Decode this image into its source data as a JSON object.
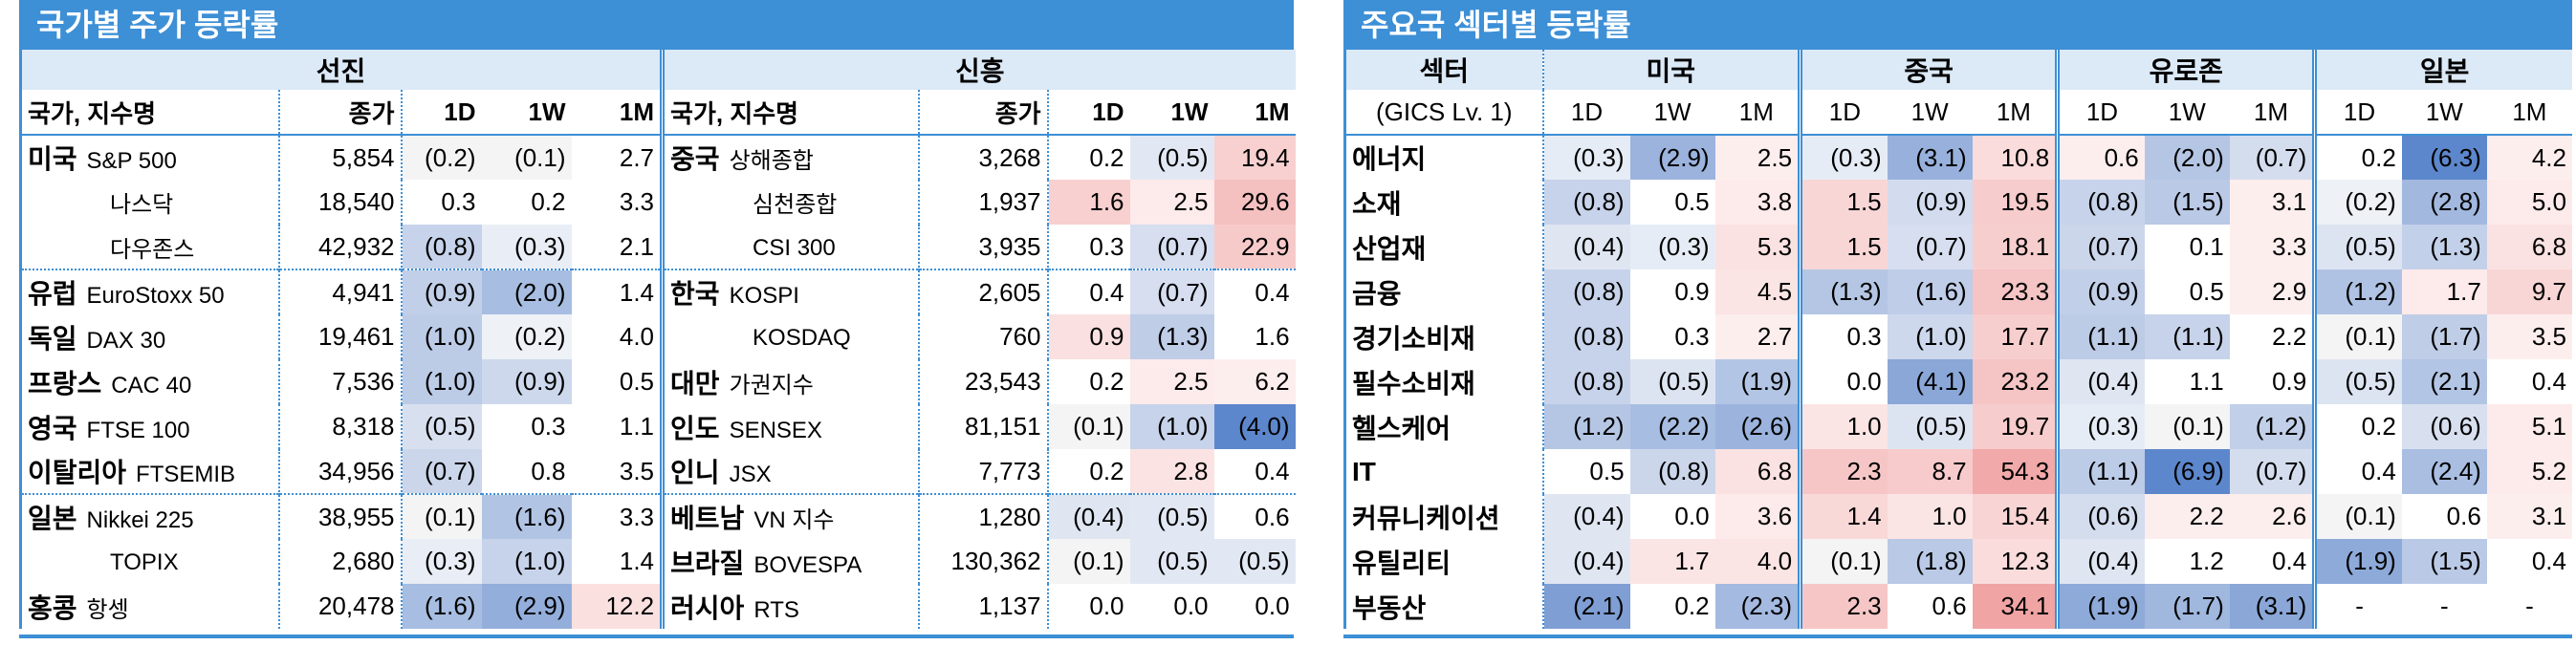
{
  "country_panel": {
    "title": "국가별 주가 등락률",
    "groups": [
      "선진",
      "신흥"
    ],
    "headers": [
      "국가, 지수명",
      "종가",
      "1D",
      "1W",
      "1M"
    ],
    "developed": [
      {
        "country": "미국",
        "index": "S&P 500",
        "close": "5,854",
        "d1": "(0.2)",
        "w1": "(0.1)",
        "m1": "2.7",
        "c1": "#f4f4f4",
        "c2": "#f4f4f4",
        "c3": "#ffffff"
      },
      {
        "country": "",
        "index": "나스닥",
        "close": "18,540",
        "d1": "0.3",
        "w1": "0.2",
        "m1": "3.3",
        "c1": "#ffffff",
        "c2": "#ffffff",
        "c3": "#ffffff"
      },
      {
        "country": "",
        "index": "다우존스",
        "close": "42,932",
        "d1": "(0.8)",
        "w1": "(0.3)",
        "m1": "2.1",
        "c1": "#c6d3ea",
        "c2": "#e9edf5",
        "c3": "#ffffff"
      },
      {
        "country": "유럽",
        "index": "EuroStoxx 50",
        "close": "4,941",
        "d1": "(0.9)",
        "w1": "(2.0)",
        "m1": "1.4",
        "c1": "#c1cfe8",
        "c2": "#a7bde1",
        "c3": "#ffffff"
      },
      {
        "country": "독일",
        "index": "DAX 30",
        "close": "19,461",
        "d1": "(1.0)",
        "w1": "(0.2)",
        "m1": "4.0",
        "c1": "#bccbe6",
        "c2": "#eef1f6",
        "c3": "#ffffff"
      },
      {
        "country": "프랑스",
        "index": "CAC 40",
        "close": "7,536",
        "d1": "(1.0)",
        "w1": "(0.9)",
        "m1": "0.5",
        "c1": "#bccbe6",
        "c2": "#cdd8ec",
        "c3": "#ffffff"
      },
      {
        "country": "영국",
        "index": "FTSE 100",
        "close": "8,318",
        "d1": "(0.5)",
        "w1": "0.3",
        "m1": "1.1",
        "c1": "#d8e0ef",
        "c2": "#ffffff",
        "c3": "#ffffff"
      },
      {
        "country": "이탈리아",
        "index": "FTSEMIB",
        "close": "34,956",
        "d1": "(0.7)",
        "w1": "0.8",
        "m1": "3.5",
        "c1": "#cbd6eb",
        "c2": "#ffffff",
        "c3": "#ffffff"
      },
      {
        "country": "일본",
        "index": "Nikkei 225",
        "close": "38,955",
        "d1": "(0.1)",
        "w1": "(1.6)",
        "m1": "3.3",
        "c1": "#f4f4f4",
        "c2": "#b1c4e4",
        "c3": "#ffffff"
      },
      {
        "country": "",
        "index": "TOPIX",
        "close": "2,680",
        "d1": "(0.3)",
        "w1": "(1.0)",
        "m1": "1.4",
        "c1": "#e9edf5",
        "c2": "#c7d3ea",
        "c3": "#ffffff"
      },
      {
        "country": "홍콩",
        "index": "항셍",
        "close": "20,478",
        "d1": "(1.6)",
        "w1": "(2.9)",
        "m1": "12.2",
        "c1": "#a7bde1",
        "c2": "#93aedb",
        "c3": "#fbe0e0"
      }
    ],
    "emerging": [
      {
        "country": "중국",
        "index": "상해종합",
        "close": "3,268",
        "d1": "0.2",
        "w1": "(0.5)",
        "m1": "19.4",
        "c1": "#ffffff",
        "c2": "#e2e8f3",
        "c3": "#f8d0d0"
      },
      {
        "country": "",
        "index": "심천종합",
        "close": "1,937",
        "d1": "1.6",
        "w1": "2.5",
        "m1": "29.6",
        "c1": "#f8d0d0",
        "c2": "#fdeaea",
        "c3": "#f5c0c0"
      },
      {
        "country": "",
        "index": "CSI 300",
        "close": "3,935",
        "d1": "0.3",
        "w1": "(0.7)",
        "m1": "22.9",
        "c1": "#ffffff",
        "c2": "#d6def0",
        "c3": "#f7caca"
      },
      {
        "country": "한국",
        "index": "KOSPI",
        "close": "2,605",
        "d1": "0.4",
        "w1": "(0.7)",
        "m1": "0.4",
        "c1": "#ffffff",
        "c2": "#d6def0",
        "c3": "#ffffff"
      },
      {
        "country": "",
        "index": "KOSDAQ",
        "close": "760",
        "d1": "0.9",
        "w1": "(1.3)",
        "m1": "1.6",
        "c1": "#fae0e0",
        "c2": "#bfcde7",
        "c3": "#ffffff"
      },
      {
        "country": "대만",
        "index": "가권지수",
        "close": "23,543",
        "d1": "0.2",
        "w1": "2.5",
        "m1": "6.2",
        "c1": "#ffffff",
        "c2": "#fdeaea",
        "c3": "#fdeeee"
      },
      {
        "country": "인도",
        "index": "SENSEX",
        "close": "81,151",
        "d1": "(0.1)",
        "w1": "(1.0)",
        "m1": "(4.0)",
        "c1": "#f4f4f4",
        "c2": "#c7d3ea",
        "c3": "#5d87cc"
      },
      {
        "country": "인니",
        "index": "JSX",
        "close": "7,773",
        "d1": "0.2",
        "w1": "2.8",
        "m1": "0.4",
        "c1": "#ffffff",
        "c2": "#fbe3e3",
        "c3": "#ffffff"
      },
      {
        "country": "베트남",
        "index": "VN 지수",
        "close": "1,280",
        "d1": "(0.4)",
        "w1": "(0.5)",
        "m1": "0.6",
        "c1": "#dfe6f2",
        "c2": "#e2e8f3",
        "c3": "#ffffff"
      },
      {
        "country": "브라질",
        "index": "BOVESPA",
        "close": "130,362",
        "d1": "(0.1)",
        "w1": "(0.5)",
        "m1": "(0.5)",
        "c1": "#f4f4f4",
        "c2": "#e2e8f3",
        "c3": "#e2e8f3"
      },
      {
        "country": "러시아",
        "index": "RTS",
        "close": "1,137",
        "d1": "0.0",
        "w1": "0.0",
        "m1": "0.0",
        "c1": "#ffffff",
        "c2": "#ffffff",
        "c3": "#ffffff"
      }
    ]
  },
  "sector_panel": {
    "title": "주요국 섹터별 등락률",
    "sector_header": "섹터",
    "sector_sub": "(GICS Lv. 1)",
    "regions": [
      "미국",
      "중국",
      "유로존",
      "일본"
    ],
    "periods": [
      "1D",
      "1W",
      "1M"
    ],
    "rows": [
      {
        "sector": "에너지",
        "v": [
          "(0.3)",
          "(2.9)",
          "2.5",
          "(0.3)",
          "(3.1)",
          "10.8",
          "0.6",
          "(2.0)",
          "(0.7)",
          "0.2",
          "(6.3)",
          "4.2"
        ],
        "c": [
          "#e6ecf5",
          "#9bb3dd",
          "#fdeeee",
          "#e6ecf5",
          "#98b1dc",
          "#fbdcdc",
          "#fdeeee",
          "#b5c6e4",
          "#d4ddee",
          "#ffffff",
          "#5d87cc",
          "#fdeeee"
        ]
      },
      {
        "sector": "소재",
        "v": [
          "(0.8)",
          "0.5",
          "3.8",
          "1.5",
          "(0.9)",
          "19.5",
          "(0.8)",
          "(1.5)",
          "3.1",
          "(0.2)",
          "(2.8)",
          "5.0"
        ],
        "c": [
          "#c7d3ea",
          "#ffffff",
          "#fdeaea",
          "#f8d6d6",
          "#d2dcee",
          "#f7cccc",
          "#c7d3ea",
          "#b9c9e6",
          "#fdeeee",
          "#eef1f6",
          "#a2b8df",
          "#fdeaea"
        ]
      },
      {
        "sector": "산업재",
        "v": [
          "(0.4)",
          "(0.3)",
          "5.3",
          "1.5",
          "(0.7)",
          "18.1",
          "(0.7)",
          "0.1",
          "3.3",
          "(0.5)",
          "(1.3)",
          "6.8"
        ],
        "c": [
          "#dfe6f2",
          "#e6ecf5",
          "#fbe2e2",
          "#f8d6d6",
          "#d6def0",
          "#f7cece",
          "#ccd6eb",
          "#ffffff",
          "#fdeeee",
          "#dde4f1",
          "#c3d0e9",
          "#fbe2e2"
        ]
      },
      {
        "sector": "금융",
        "v": [
          "(0.8)",
          "0.9",
          "4.5",
          "(1.3)",
          "(1.6)",
          "23.3",
          "(0.9)",
          "0.5",
          "2.9",
          "(1.2)",
          "1.7",
          "9.7"
        ],
        "c": [
          "#c7d3ea",
          "#ffffff",
          "#fbe4e4",
          "#b5c6e4",
          "#c0cde8",
          "#f5c4c4",
          "#c2cfe8",
          "#ffffff",
          "#fdeeee",
          "#b0c2e3",
          "#fdeaea",
          "#f8d6d6"
        ]
      },
      {
        "sector": "경기소비재",
        "v": [
          "(0.8)",
          "0.3",
          "2.7",
          "0.3",
          "(1.0)",
          "17.7",
          "(1.1)",
          "(1.1)",
          "2.2",
          "(0.1)",
          "(1.7)",
          "3.5"
        ],
        "c": [
          "#c7d3ea",
          "#ffffff",
          "#fdeeee",
          "#ffffff",
          "#cdd8ec",
          "#f7cece",
          "#bccbe6",
          "#c7d3ea",
          "#ffffff",
          "#f4f4f4",
          "#bfcde7",
          "#fdeeee"
        ]
      },
      {
        "sector": "필수소비재",
        "v": [
          "(0.8)",
          "(0.5)",
          "(1.9)",
          "0.0",
          "(4.1)",
          "23.2",
          "(0.4)",
          "1.1",
          "0.9",
          "(0.5)",
          "(2.1)",
          "0.4"
        ],
        "c": [
          "#c7d3ea",
          "#dde4f1",
          "#b3c5e4",
          "#ffffff",
          "#8aa7d8",
          "#f5c4c4",
          "#dfe6f2",
          "#ffffff",
          "#ffffff",
          "#dde4f1",
          "#b3c5e4",
          "#ffffff"
        ]
      },
      {
        "sector": "헬스케어",
        "v": [
          "(1.2)",
          "(2.2)",
          "(2.6)",
          "1.0",
          "(0.5)",
          "19.7",
          "(0.3)",
          "(0.1)",
          "(1.2)",
          "0.2",
          "(0.6)",
          "5.1"
        ],
        "c": [
          "#b5c6e4",
          "#a7bde1",
          "#9bb3dd",
          "#fbe4e4",
          "#dde4f1",
          "#f7cccc",
          "#e6ecf5",
          "#f4f4f4",
          "#c2cfe8",
          "#ffffff",
          "#d8e0ef",
          "#fdeaea"
        ]
      },
      {
        "sector": "IT",
        "v": [
          "0.5",
          "(0.8)",
          "6.8",
          "2.3",
          "8.7",
          "54.3",
          "(1.1)",
          "(6.9)",
          "(0.7)",
          "0.4",
          "(2.4)",
          "5.2"
        ],
        "c": [
          "#ffffff",
          "#ccd6eb",
          "#fbe2e2",
          "#f6c6c6",
          "#f7cbcb",
          "#f2a9a9",
          "#bccbe6",
          "#5d87cc",
          "#d4ddee",
          "#ffffff",
          "#a9bee1",
          "#fdeaea"
        ]
      },
      {
        "sector": "커뮤니케이션",
        "v": [
          "(0.4)",
          "0.0",
          "3.6",
          "1.4",
          "1.0",
          "15.4",
          "(0.6)",
          "2.2",
          "2.6",
          "(0.1)",
          "0.6",
          "3.1"
        ],
        "c": [
          "#dfe6f2",
          "#ffffff",
          "#fdeaea",
          "#f9d8d8",
          "#fbe4e4",
          "#f8d4d4",
          "#d4ddee",
          "#fdeeee",
          "#fdeeee",
          "#f4f4f4",
          "#ffffff",
          "#fdeeee"
        ]
      },
      {
        "sector": "유틸리티",
        "v": [
          "(0.4)",
          "1.7",
          "4.0",
          "(0.1)",
          "(1.8)",
          "12.3",
          "(0.4)",
          "1.2",
          "0.4",
          "(1.9)",
          "(1.5)",
          "0.4"
        ],
        "c": [
          "#dfe6f2",
          "#fbe4e4",
          "#fbe4e4",
          "#f4f4f4",
          "#b9c9e6",
          "#fadcdc",
          "#dfe6f2",
          "#ffffff",
          "#ffffff",
          "#8eaad9",
          "#bacae6",
          "#ffffff"
        ]
      },
      {
        "sector": "부동산",
        "v": [
          "(2.1)",
          "0.2",
          "(2.3)",
          "2.3",
          "0.6",
          "34.1",
          "(1.9)",
          "(1.7)",
          "(3.1)",
          "-",
          "-",
          "-"
        ],
        "c": [
          "#7f9ed4",
          "#ffffff",
          "#a4bae0",
          "#f6c6c6",
          "#ffffff",
          "#f0a4a4",
          "#8eaad9",
          "#a0b7de",
          "#8aa7d8",
          "#ffffff",
          "#ffffff",
          "#ffffff"
        ]
      }
    ]
  }
}
